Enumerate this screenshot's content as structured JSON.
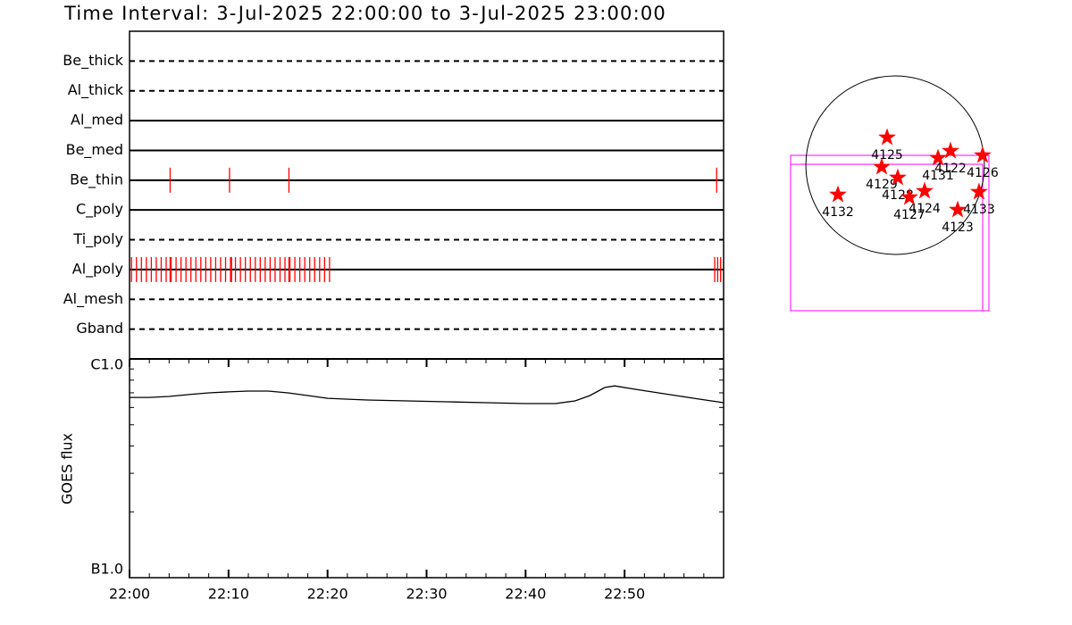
{
  "chart_data": [
    {
      "type": "timeline",
      "title": "Time Interval:  3-Jul-2025 22:00:00 to  3-Jul-2025 23:00:00",
      "categories": [
        "Be_thick",
        "Al_thick",
        "Al_med",
        "Be_med",
        "Be_thin",
        "C_poly",
        "Ti_poly",
        "Al_poly",
        "Al_mesh",
        "Gband"
      ],
      "line_styles": [
        "dashed",
        "dashed",
        "solid",
        "solid",
        "solid",
        "solid",
        "dashed",
        "solid",
        "dashed",
        "dashed"
      ],
      "events": [
        [],
        [],
        [],
        [],
        [
          4.1,
          10.1,
          16.1,
          59.3
        ],
        [],
        [],
        [
          0.2,
          0.7,
          1.2,
          1.7,
          2.2,
          2.7,
          3.2,
          3.7,
          4.1,
          4.2,
          4.7,
          5.2,
          5.7,
          6.2,
          6.7,
          7.2,
          7.7,
          8.2,
          8.7,
          9.2,
          9.7,
          10.2,
          10.3,
          10.7,
          11.2,
          11.7,
          12.2,
          12.7,
          13.2,
          13.7,
          14.2,
          14.7,
          15.2,
          15.7,
          16.1,
          16.2,
          16.7,
          17.2,
          17.7,
          18.2,
          18.7,
          19.2,
          19.7,
          20.2,
          59.1,
          59.4,
          59.7
        ],
        [],
        []
      ],
      "event_color": "#ff0000",
      "xlim": [
        0,
        60
      ]
    },
    {
      "type": "line",
      "ylabel": "GOES flux",
      "x": [
        0,
        2,
        4,
        6,
        8,
        10,
        12,
        14,
        16,
        18,
        20,
        24,
        28,
        32,
        36,
        40,
        43,
        45,
        46.5,
        48,
        49,
        51,
        54,
        57,
        60
      ],
      "values": [
        6.67e-07,
        6.67e-07,
        6.74e-07,
        6.87e-07,
        7e-07,
        7.07e-07,
        7.13e-07,
        7.13e-07,
        7e-07,
        6.8e-07,
        6.61e-07,
        6.49e-07,
        6.43e-07,
        6.37e-07,
        6.31e-07,
        6.25e-07,
        6.25e-07,
        6.43e-07,
        6.8e-07,
        7.4e-07,
        7.53e-07,
        7.27e-07,
        6.93e-07,
        6.61e-07,
        6.31e-07
      ],
      "color": "#000000",
      "xlim": [
        0,
        60
      ],
      "xticks": [
        {
          "value": 0,
          "label": "22:00"
        },
        {
          "value": 10,
          "label": "22:10"
        },
        {
          "value": 20,
          "label": "22:20"
        },
        {
          "value": 30,
          "label": "22:30"
        },
        {
          "value": 40,
          "label": "22:40"
        },
        {
          "value": 50,
          "label": "22:50"
        }
      ],
      "minor_xticks": [
        2,
        4,
        6,
        8,
        12,
        14,
        16,
        18,
        22,
        24,
        26,
        28,
        32,
        34,
        36,
        38,
        42,
        44,
        46,
        48,
        52,
        54,
        56,
        58
      ],
      "ylim": [
        1e-07,
        1e-06
      ],
      "log_y": true,
      "yticks": [
        {
          "value": 1e-07,
          "label": "B1.0"
        },
        {
          "value": 1e-06,
          "label": "C1.0"
        }
      ],
      "minor_yticks": [
        2e-07,
        3e-07,
        4e-07,
        5e-07,
        6e-07,
        7e-07,
        8e-07,
        9e-07
      ]
    },
    {
      "type": "scatter",
      "labels": [
        "4125",
        "4122",
        "4126",
        "4131",
        "4129",
        "4128",
        "4124",
        "4127",
        "4133",
        "4123",
        "4132"
      ],
      "x": [
        -85,
        586,
        926,
        454,
        -142,
        28,
        312,
        151,
        888,
        662,
        -605
      ],
      "y": [
        293,
        151,
        104,
        76,
        -19,
        -132,
        -274,
        -340,
        -284,
        -473,
        -312
      ],
      "color": "#ff0000",
      "xlim": [
        -1040,
        1040
      ],
      "ylim": [
        -1040,
        1040
      ],
      "limb_radius": 945
    }
  ]
}
